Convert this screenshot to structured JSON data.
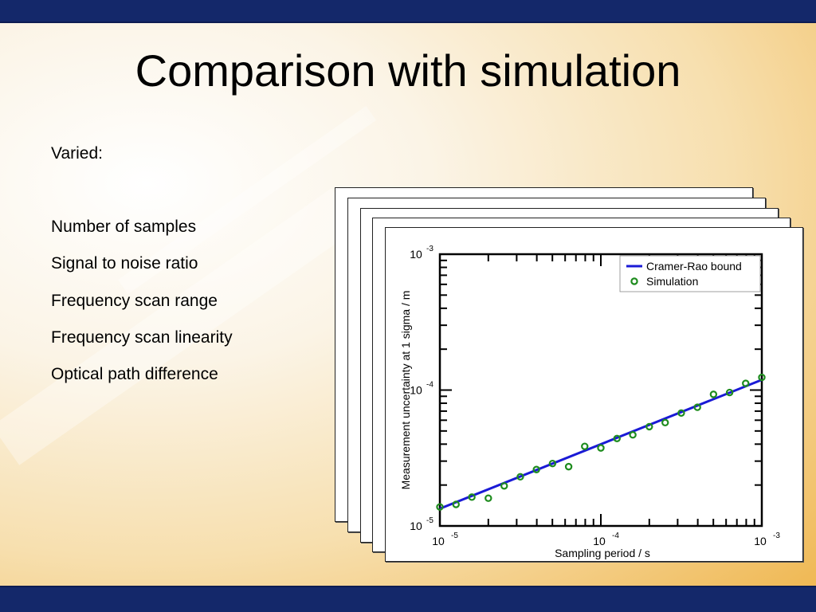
{
  "slide": {
    "title": "Comparison with simulation",
    "intro": "Varied:",
    "items": [
      "Number of samples",
      "Signal to noise ratio",
      "Frequency scan range",
      "Frequency scan linearity",
      "Optical path difference"
    ],
    "colors": {
      "band": "#14286a",
      "background_accent": "#efb54c"
    }
  },
  "chart_data": {
    "type": "scatter",
    "xlabel": "Sampling period / s",
    "ylabel": "Measurement uncertainty at 1 sigma / m",
    "x_scale": "log",
    "y_scale": "log",
    "xlim": [
      1e-05,
      0.001
    ],
    "ylim": [
      1e-05,
      0.001
    ],
    "x_ticks": [
      {
        "base": "10",
        "exp": "-5"
      },
      {
        "base": "10",
        "exp": "-4"
      },
      {
        "base": "10",
        "exp": "-3"
      }
    ],
    "y_ticks": [
      {
        "base": "10",
        "exp": "-5"
      },
      {
        "base": "10",
        "exp": "-4"
      },
      {
        "base": "10",
        "exp": "-3"
      }
    ],
    "grid": false,
    "legend_position": "top-right",
    "series": [
      {
        "name": "Cramer-Rao bound",
        "kind": "line",
        "color": "#1a1ad6",
        "x": [
          1e-05,
          0.001
        ],
        "y": [
          1.34e-05,
          0.000119
        ]
      },
      {
        "name": "Simulation",
        "kind": "marker",
        "color": "#1e8c1e",
        "x": [
          1e-05,
          1.26e-05,
          1.58e-05,
          2e-05,
          2.51e-05,
          3.16e-05,
          3.98e-05,
          5.01e-05,
          6.31e-05,
          7.94e-05,
          0.0001,
          0.000126,
          0.000158,
          0.0002,
          0.000251,
          0.000316,
          0.000398,
          0.000501,
          0.000631,
          0.000794,
          0.001
        ],
        "y": [
          1.38e-05,
          1.44e-05,
          1.63e-05,
          1.6e-05,
          1.97e-05,
          2.3e-05,
          2.6e-05,
          2.88e-05,
          2.73e-05,
          3.85e-05,
          3.75e-05,
          4.4e-05,
          4.68e-05,
          5.38e-05,
          5.76e-05,
          6.78e-05,
          7.47e-05,
          9.3e-05,
          9.6e-05,
          0.000112,
          0.000124
        ]
      }
    ]
  }
}
